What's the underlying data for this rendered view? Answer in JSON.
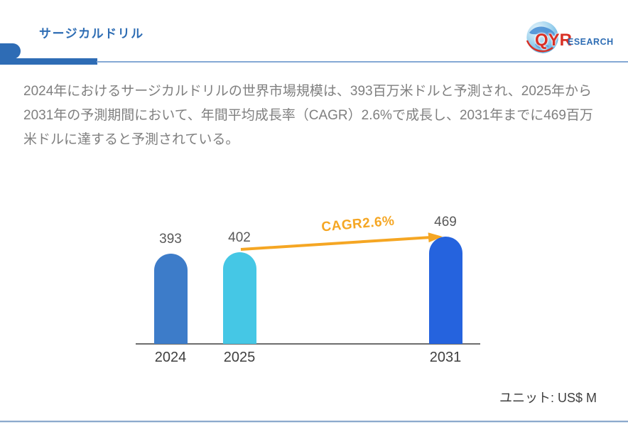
{
  "header": {
    "title": "サージカルドリル",
    "logo": {
      "prefix": "QYR",
      "suffix": "ESEARCH"
    }
  },
  "summary": {
    "text": "2024年におけるサージカルドリルの世界市場規模は、393百万米ドルと予測され、2025年から2031年の予測期間において、年間平均成長率（CAGR）2.6%で成長し、2031年までに469百万米ドルに達すると予測されている。"
  },
  "chart_data": {
    "type": "bar",
    "title": "",
    "xlabel": "",
    "ylabel": "",
    "categories": [
      "2024",
      "2025",
      "2031"
    ],
    "values": [
      393,
      402,
      469
    ],
    "bar_colors": [
      "#3D7CC9",
      "#45C7E5",
      "#2563DE"
    ],
    "value_label_color": "#595959",
    "axis_label_color": "#3F3F3F",
    "axis_line_color": "#6E6E6E",
    "annotation": {
      "text": "CAGR2.6%",
      "color": "#F5A623",
      "from": "2025",
      "to": "2031"
    },
    "unit_label": "ユニット: US$ M",
    "ylim": [
      0,
      500
    ],
    "grid": false,
    "legend": false
  },
  "theme": {
    "title_color": "#2E6DB4",
    "accent_color": "#2E6CB5",
    "thin_rule_color": "#85A9D4",
    "bottom_rule_color": "#8CA9CC",
    "summary_color": "#7F7F7F",
    "logo_prefix_color": "#D93025",
    "logo_suffix_color": "#2E6DB4"
  }
}
